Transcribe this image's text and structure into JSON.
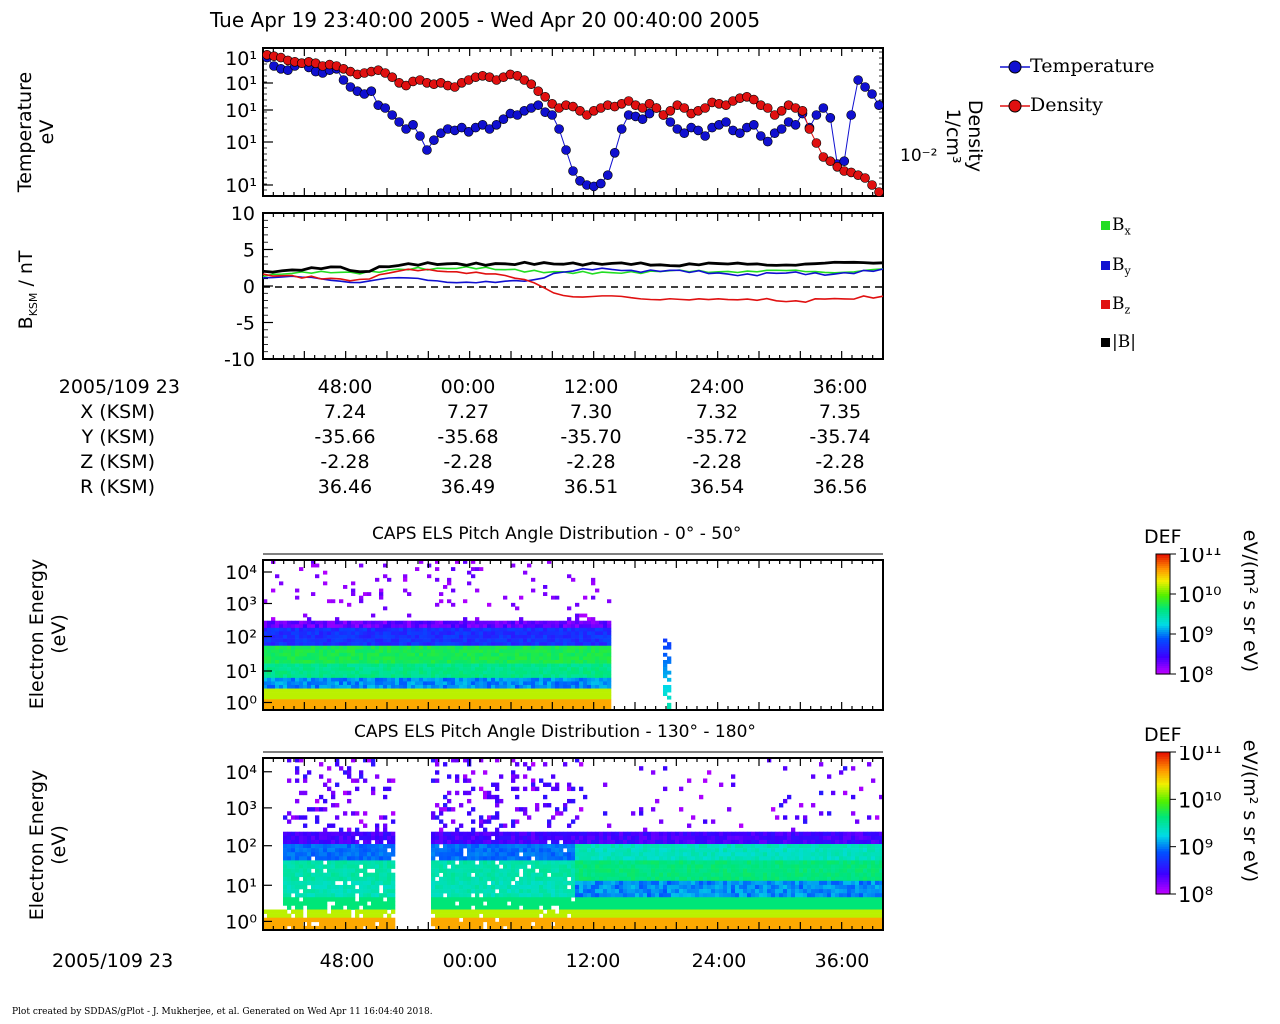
{
  "title": "Tue Apr 19 23:40:00 2005 - Wed Apr 20 00:40:00 2005",
  "panel1": {
    "ylabel_line1": "Temperature",
    "ylabel_line2": "eV",
    "right_label_line1": "Density",
    "right_label_line2": "1/cm³",
    "right_tick": "10⁻²",
    "yticks": [
      "10¹",
      "10¹",
      "10¹",
      "10¹",
      "10¹"
    ],
    "legend": [
      {
        "label": "Temperature",
        "color": "#1010d0"
      },
      {
        "label": "Density",
        "color": "#e01010"
      }
    ]
  },
  "panel2": {
    "ylabel": "B",
    "ylabel_sub": "KSM",
    "ylabel_unit": " / nT",
    "yticks": [
      "10",
      "5",
      "0",
      "-5",
      "-10"
    ],
    "legend": [
      {
        "label": "B",
        "sub": "x",
        "color": "#22dd22"
      },
      {
        "label": "B",
        "sub": "y",
        "color": "#1010d0"
      },
      {
        "label": "B",
        "sub": "z",
        "color": "#e01010"
      },
      {
        "label": "|B|",
        "sub": "",
        "color": "#000000"
      }
    ]
  },
  "ephemeris": {
    "rows": [
      {
        "label": "2005/109 23",
        "values": [
          "48:00",
          "00:00",
          "12:00",
          "24:00",
          "36:00"
        ]
      },
      {
        "label": "X (KSM)",
        "values": [
          "7.24",
          "7.27",
          "7.30",
          "7.32",
          "7.35"
        ]
      },
      {
        "label": "Y (KSM)",
        "values": [
          "-35.66",
          "-35.68",
          "-35.70",
          "-35.72",
          "-35.74"
        ]
      },
      {
        "label": "Z (KSM)",
        "values": [
          "-2.28",
          "-2.28",
          "-2.28",
          "-2.28",
          "-2.28"
        ]
      },
      {
        "label": "R (KSM)",
        "values": [
          "36.46",
          "36.49",
          "36.51",
          "36.54",
          "36.56"
        ]
      }
    ]
  },
  "spectrogram1": {
    "title": "CAPS ELS Pitch Angle Distribution - 0° - 50°",
    "ylabel_line1": "Electron Energy",
    "ylabel_line2": "(eV)",
    "yticks": [
      "10⁴",
      "10³",
      "10²",
      "10¹",
      "10⁰"
    ]
  },
  "spectrogram2": {
    "title": "CAPS ELS Pitch Angle Distribution - 130° - 180°",
    "ylabel_line1": "Electron Energy",
    "ylabel_line2": "(eV)",
    "yticks": [
      "10⁴",
      "10³",
      "10²",
      "10¹",
      "10⁰"
    ]
  },
  "colorbar": {
    "label": "DEF",
    "unit": "eV/(m² s sr eV)",
    "ticks": [
      "10¹¹",
      "10¹⁰",
      "10⁹",
      "10⁸"
    ]
  },
  "bottom_axis": {
    "label": "2005/109 23",
    "ticks": [
      "48:00",
      "00:00",
      "12:00",
      "24:00",
      "36:00"
    ]
  },
  "footer": "Plot created by SDDAS/gPlot - J. Mukherjee, et al.  Generated on Wed Apr 11 16:04:40 2018.",
  "chart_data": [
    {
      "type": "line",
      "title": "Tue Apr 19 23:40:00 2005 - Wed Apr 20 00:40:00 2005",
      "ylabel": "Temperature eV",
      "y2label": "Density 1/cm³",
      "yscale": "log",
      "legend_position": "right",
      "x_span_minutes": 60,
      "series": [
        {
          "name": "Temperature",
          "color": "#1010d0",
          "marker": "circle",
          "values": [
            0.96,
            0.9,
            0.88,
            0.87,
            0.9,
            0.92,
            0.89,
            0.86,
            0.85,
            0.87,
            0.88,
            0.8,
            0.75,
            0.72,
            0.7,
            0.72,
            0.62,
            0.6,
            0.55,
            0.5,
            0.45,
            0.48,
            0.4,
            0.3,
            0.37,
            0.42,
            0.45,
            0.44,
            0.46,
            0.43,
            0.46,
            0.48,
            0.45,
            0.48,
            0.52,
            0.56,
            0.55,
            0.58,
            0.6,
            0.62,
            0.57,
            0.55,
            0.45,
            0.3,
            0.15,
            0.08,
            0.05,
            0.04,
            0.06,
            0.12,
            0.28,
            0.45,
            0.55,
            0.54,
            0.52,
            0.56,
            0.6,
            0.55,
            0.5,
            0.45,
            0.42,
            0.46,
            0.44,
            0.4,
            0.46,
            0.48,
            0.5,
            0.44,
            0.42,
            0.46,
            0.48,
            0.4,
            0.36,
            0.42,
            0.45,
            0.5,
            0.48,
            0.56,
            0.46,
            0.55,
            0.6,
            0.53,
            0.2,
            0.22,
            0.55,
            0.8,
            0.75,
            0.7,
            0.62
          ]
        },
        {
          "name": "Density",
          "color": "#e01010",
          "marker": "circle",
          "axis": "right",
          "values": [
            0.98,
            0.97,
            0.96,
            0.94,
            0.93,
            0.92,
            0.93,
            0.92,
            0.9,
            0.91,
            0.9,
            0.88,
            0.86,
            0.84,
            0.85,
            0.86,
            0.87,
            0.85,
            0.82,
            0.78,
            0.76,
            0.79,
            0.8,
            0.78,
            0.77,
            0.78,
            0.76,
            0.75,
            0.78,
            0.8,
            0.82,
            0.83,
            0.82,
            0.8,
            0.82,
            0.84,
            0.83,
            0.8,
            0.77,
            0.72,
            0.68,
            0.63,
            0.6,
            0.62,
            0.61,
            0.58,
            0.55,
            0.58,
            0.6,
            0.62,
            0.61,
            0.63,
            0.65,
            0.62,
            0.6,
            0.63,
            0.6,
            0.55,
            0.58,
            0.62,
            0.6,
            0.56,
            0.58,
            0.6,
            0.64,
            0.63,
            0.62,
            0.65,
            0.67,
            0.68,
            0.66,
            0.62,
            0.6,
            0.55,
            0.58,
            0.62,
            0.6,
            0.58,
            0.45,
            0.35,
            0.25,
            0.22,
            0.18,
            0.15,
            0.14,
            0.12,
            0.1,
            0.05,
            0.0
          ]
        }
      ]
    },
    {
      "type": "line",
      "ylabel": "BKSM / nT",
      "ylim": [
        -10,
        10
      ],
      "yticks": [
        -10,
        -5,
        0,
        5,
        10
      ],
      "legend_position": "right",
      "series": [
        {
          "name": "Bx",
          "color": "#22dd22",
          "values": [
            1.3,
            1.5,
            1.8,
            2.0,
            2.0,
            1.8,
            1.9,
            2.2,
            2.4,
            2.4,
            2.5,
            2.5,
            2.3,
            2.2,
            2.0,
            1.9,
            1.8,
            1.8,
            1.9,
            1.9,
            1.9,
            2.0,
            2.0,
            2.0,
            2.1,
            2.0,
            2.0,
            2.0,
            2.0,
            2.0,
            2.0,
            2.1,
            2.2
          ]
        },
        {
          "name": "By",
          "color": "#1010d0",
          "values": [
            1.0,
            1.1,
            1.2,
            1.1,
            0.8,
            0.5,
            0.8,
            1.0,
            1.0,
            0.8,
            0.6,
            0.5,
            0.4,
            0.6,
            0.8,
            1.8,
            2.2,
            2.3,
            2.2,
            2.0,
            2.1,
            2.2,
            2.0,
            1.8,
            1.6,
            1.5,
            1.7,
            1.8,
            1.7,
            1.6,
            1.8,
            2.0,
            2.2
          ]
        },
        {
          "name": "Bz",
          "color": "#e01010",
          "values": [
            1.5,
            1.4,
            1.2,
            1.1,
            1.0,
            0.8,
            1.4,
            2.0,
            2.2,
            2.2,
            2.0,
            1.8,
            1.5,
            1.0,
            0.5,
            -0.8,
            -1.4,
            -1.5,
            -1.5,
            -1.7,
            -1.8,
            -1.6,
            -1.8,
            -1.9,
            -2.0,
            -1.9,
            -1.7,
            -2.0,
            -2.1,
            -1.8,
            -1.9,
            -1.5,
            -1.4
          ]
        },
        {
          "name": "|B|",
          "color": "#000000",
          "values": [
            2.0,
            2.2,
            2.3,
            2.4,
            2.5,
            1.8,
            2.6,
            2.9,
            3.0,
            3.0,
            3.0,
            3.0,
            3.0,
            3.0,
            3.1,
            3.1,
            3.1,
            3.0,
            3.0,
            3.0,
            3.0,
            2.9,
            3.0,
            3.0,
            2.9,
            3.0,
            3.0,
            3.0,
            3.0,
            3.0,
            3.1,
            3.2,
            3.3
          ]
        }
      ]
    },
    {
      "type": "heatmap",
      "title": "CAPS ELS Pitch Angle Distribution - 0° - 50°",
      "ylabel": "Electron Energy (eV)",
      "yscale": "log",
      "ylim": [
        0.6,
        30000
      ],
      "colorbar_label": "DEF",
      "colorbar_unit": "eV/(m² s sr eV)",
      "clim": [
        100000000.0,
        100000000000.0
      ]
    },
    {
      "type": "heatmap",
      "title": "CAPS ELS Pitch Angle Distribution - 130° - 180°",
      "ylabel": "Electron Energy (eV)",
      "yscale": "log",
      "ylim": [
        0.6,
        30000
      ],
      "colorbar_label": "DEF",
      "colorbar_unit": "eV/(m² s sr eV)",
      "clim": [
        100000000.0,
        100000000000.0
      ]
    }
  ]
}
